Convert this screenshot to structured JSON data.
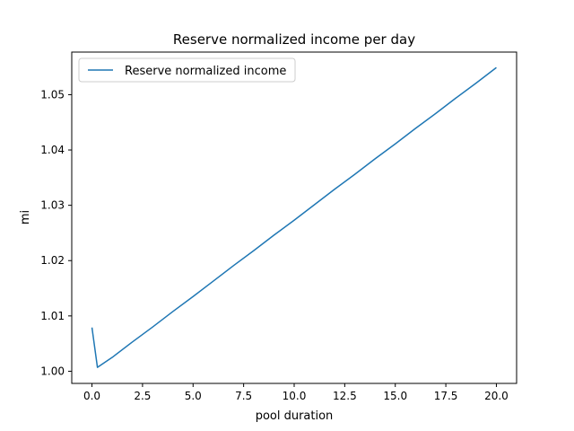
{
  "chart_data": {
    "type": "line",
    "title": "Reserve normalized income per day",
    "xlabel": "pool duration",
    "ylabel": "mi",
    "xlim": [
      -1.0,
      21.0
    ],
    "ylim": [
      0.9978,
      1.0577
    ],
    "xticks": [
      0.0,
      2.5,
      5.0,
      7.5,
      10.0,
      12.5,
      15.0,
      17.5,
      20.0
    ],
    "xtick_labels": [
      "0.0",
      "2.5",
      "5.0",
      "7.5",
      "10.0",
      "12.5",
      "15.0",
      "17.5",
      "20.0"
    ],
    "yticks": [
      1.0,
      1.01,
      1.02,
      1.03,
      1.04,
      1.05
    ],
    "ytick_labels": [
      "1.00",
      "1.01",
      "1.02",
      "1.03",
      "1.04",
      "1.05"
    ],
    "grid": false,
    "legend_position": "upper left",
    "series": [
      {
        "name": "Reserve normalized income",
        "color": "#1f77b4",
        "x": [
          0.0,
          0.27,
          1.0,
          2.0,
          3.0,
          4.0,
          5.0,
          6.0,
          7.0,
          8.0,
          9.0,
          10.0,
          11.0,
          12.0,
          13.0,
          14.0,
          15.0,
          16.0,
          17.0,
          18.0,
          19.0,
          20.0
        ],
        "y": [
          1.0079,
          1.0007,
          1.0025,
          1.0053,
          1.008,
          1.0108,
          1.0135,
          1.0163,
          1.0191,
          1.0218,
          1.0246,
          1.0273,
          1.0301,
          1.0329,
          1.0356,
          1.0384,
          1.0411,
          1.0439,
          1.0466,
          1.0494,
          1.0521,
          1.0549
        ]
      }
    ]
  }
}
